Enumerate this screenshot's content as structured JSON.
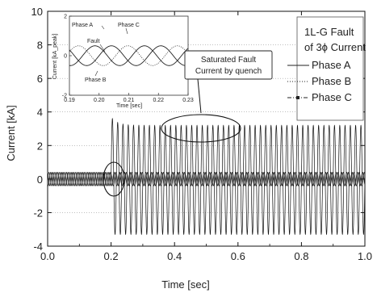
{
  "chart_data": [
    {
      "type": "line",
      "xlabel": "Time [sec]",
      "ylabel": "Current [kA]",
      "xlim": [
        0.0,
        1.0
      ],
      "ylim": [
        -4,
        10
      ],
      "x_ticks": [
        "0.0",
        "0.2",
        "0.4",
        "0.6",
        "0.8",
        "1.0"
      ],
      "y_ticks": [
        "-4",
        "-2",
        "0",
        "2",
        "4",
        "6",
        "8",
        "10"
      ],
      "legend_title": [
        "1L-G Fault",
        "of 3ϕ Current"
      ],
      "fault_time": 0.2,
      "frequency_hz": 60,
      "series": [
        {
          "name": "Phase A",
          "pre_fault_amplitude": 0.4,
          "fault_peak_first": 3.7,
          "fault_peak_saturated": 3.2,
          "fault_min": -3.3,
          "style": "solid"
        },
        {
          "name": "Phase B",
          "pre_fault_amplitude": 0.4,
          "post_fault_amplitude": 0.4,
          "style": "dotted"
        },
        {
          "name": "Phase C",
          "pre_fault_amplitude": 0.4,
          "post_fault_amplitude": 0.4,
          "style": "dash-dot-marker"
        }
      ],
      "annotations": [
        "Saturated Fault",
        "Current by quench"
      ]
    },
    {
      "type": "line",
      "title": "inset",
      "xlabel": "Time [sec]",
      "ylabel": "Current [kA_peak]",
      "xlim": [
        0.19,
        0.23
      ],
      "ylim": [
        -2,
        2
      ],
      "x_ticks": [
        "0.19",
        "0.20",
        "0.21",
        "0.22",
        "0.23"
      ],
      "y_ticks": [
        "-2",
        "0",
        "2"
      ],
      "annotations": [
        "Phase A",
        "Phase C",
        "Fault",
        "Phase B"
      ]
    }
  ]
}
